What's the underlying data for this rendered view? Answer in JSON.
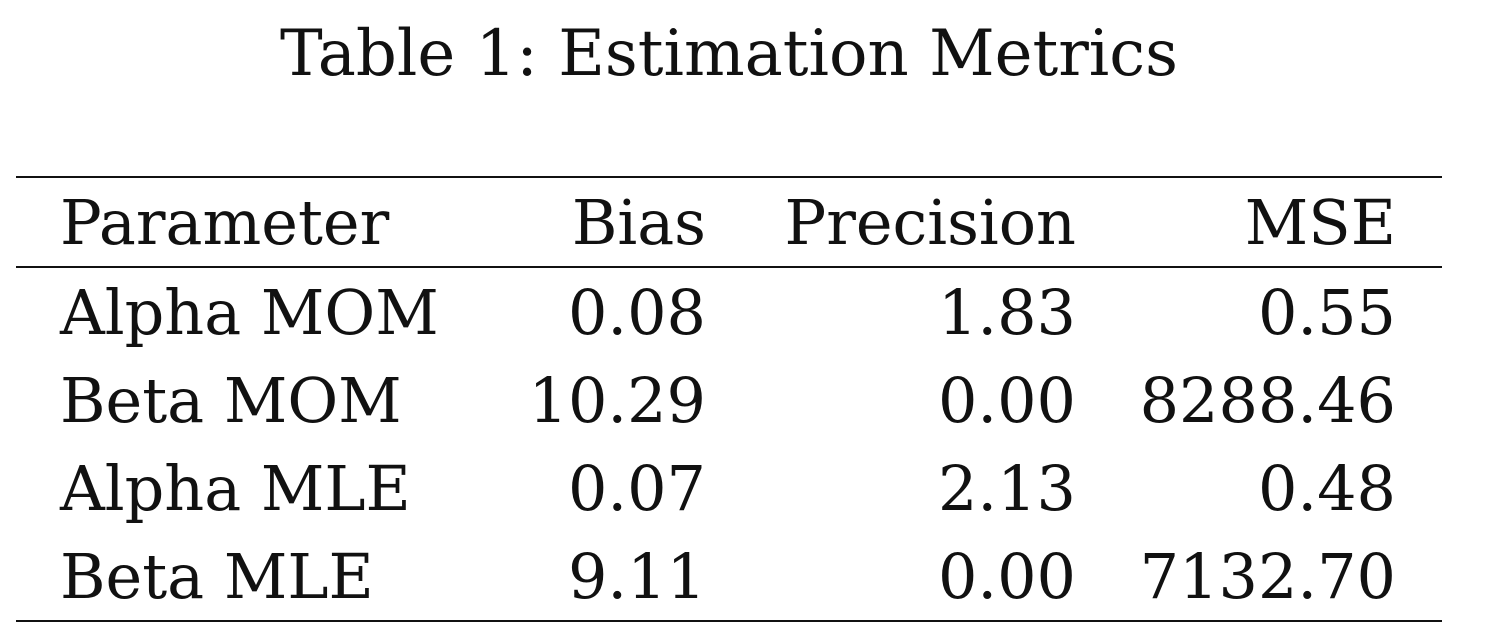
{
  "caption": "Table 1: Estimation Metrics",
  "table": {
    "headers": [
      "Parameter",
      "Bias",
      "Precision",
      "MSE"
    ],
    "rows": [
      [
        "Alpha MOM",
        "0.08",
        "1.83",
        "0.55"
      ],
      [
        "Beta MOM",
        "10.29",
        "0.00",
        "8288.46"
      ],
      [
        "Alpha MLE",
        "0.07",
        "2.13",
        "0.48"
      ],
      [
        "Beta MLE",
        "9.11",
        "0.00",
        "7132.70"
      ]
    ]
  },
  "chart_data": {
    "type": "table",
    "title": "Table 1: Estimation Metrics",
    "columns": [
      "Parameter",
      "Bias",
      "Precision",
      "MSE"
    ],
    "rows": [
      {
        "Parameter": "Alpha MOM",
        "Bias": 0.08,
        "Precision": 1.83,
        "MSE": 0.55
      },
      {
        "Parameter": "Beta MOM",
        "Bias": 10.29,
        "Precision": 0.0,
        "MSE": 8288.46
      },
      {
        "Parameter": "Alpha MLE",
        "Bias": 0.07,
        "Precision": 2.13,
        "MSE": 0.48
      },
      {
        "Parameter": "Beta MLE",
        "Bias": 9.11,
        "Precision": 0.0,
        "MSE": 7132.7
      }
    ]
  }
}
